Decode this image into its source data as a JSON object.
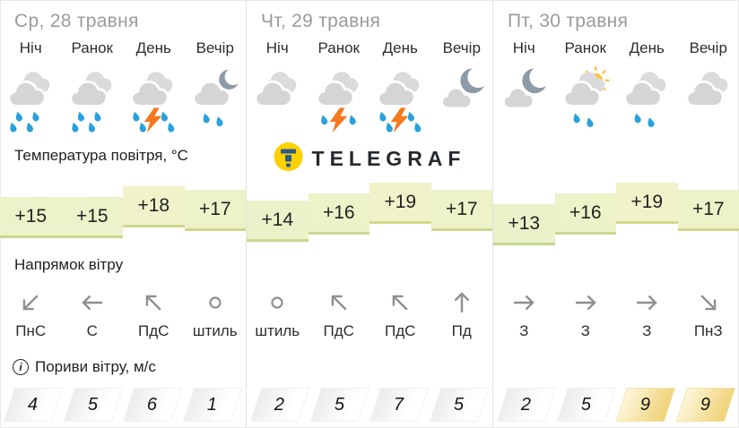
{
  "sections": {
    "temperature": "Температура повітря, °C",
    "wind_direction": "Напрямок вітру",
    "gusts": "Пориви вітру, м/с",
    "gusts_info_symbol": "i"
  },
  "logo": {
    "text": "TELEGRAF"
  },
  "days": [
    {
      "title": "Ср, 28 травня",
      "slots": [
        {
          "time": "Ніч",
          "icon": "cloud-rain4-icon",
          "temp": "+15",
          "temp_value": 15,
          "wind_arrow": "down-left",
          "wind_label": "ПнС",
          "gust": "4",
          "gust_warning": false
        },
        {
          "time": "Ранок",
          "icon": "cloud-rain4-icon",
          "temp": "+15",
          "temp_value": 15,
          "wind_arrow": "left",
          "wind_label": "С",
          "gust": "5",
          "gust_warning": false
        },
        {
          "time": "День",
          "icon": "cloud-storm4-icon",
          "temp": "+18",
          "temp_value": 18,
          "wind_arrow": "up-left",
          "wind_label": "ПдС",
          "gust": "6",
          "gust_warning": false
        },
        {
          "time": "Вечір",
          "icon": "cloud-moon-rain2-icon",
          "temp": "+17",
          "temp_value": 17,
          "wind_arrow": "calm",
          "wind_label": "штиль",
          "gust": "1",
          "gust_warning": false
        }
      ]
    },
    {
      "title": "Чт, 29 травня",
      "slots": [
        {
          "time": "Ніч",
          "icon": "cloudy-icon",
          "temp": "+14",
          "temp_value": 14,
          "wind_arrow": "calm",
          "wind_label": "штиль",
          "gust": "2",
          "gust_warning": false
        },
        {
          "time": "Ранок",
          "icon": "cloud-storm2-icon",
          "temp": "+16",
          "temp_value": 16,
          "wind_arrow": "up-left",
          "wind_label": "ПдС",
          "gust": "5",
          "gust_warning": false
        },
        {
          "time": "День",
          "icon": "cloud-storm4-icon",
          "temp": "+19",
          "temp_value": 19,
          "wind_arrow": "up-left",
          "wind_label": "ПдС",
          "gust": "7",
          "gust_warning": false
        },
        {
          "time": "Вечір",
          "icon": "moon-cloud-icon",
          "temp": "+17",
          "temp_value": 17,
          "wind_arrow": "up",
          "wind_label": "Пд",
          "gust": "5",
          "gust_warning": false
        }
      ]
    },
    {
      "title": "Пт, 30 травня",
      "slots": [
        {
          "time": "Ніч",
          "icon": "moon-cloud-icon",
          "temp": "+13",
          "temp_value": 13,
          "wind_arrow": "right",
          "wind_label": "З",
          "gust": "2",
          "gust_warning": false
        },
        {
          "time": "Ранок",
          "icon": "sun-cloud-rain2-icon",
          "temp": "+16",
          "temp_value": 16,
          "wind_arrow": "right",
          "wind_label": "З",
          "gust": "5",
          "gust_warning": false
        },
        {
          "time": "День",
          "icon": "cloud-rain2-icon",
          "temp": "+19",
          "temp_value": 19,
          "wind_arrow": "right",
          "wind_label": "З",
          "gust": "9",
          "gust_warning": true
        },
        {
          "time": "Вечір",
          "icon": "cloudy-icon",
          "temp": "+17",
          "temp_value": 17,
          "wind_arrow": "down-right",
          "wind_label": "ПнЗ",
          "gust": "9",
          "gust_warning": true
        }
      ]
    }
  ],
  "colors": {
    "temp_cell_green": "#edf4c3",
    "temp_cell_border": "#cbe29b",
    "gust_warn_yellow": "#efd172",
    "rain_drop_blue": "#2aa1dc",
    "lightning_orange": "#f4791f",
    "moon_slate": "#8d9aa8",
    "sun_yellow": "#fdc32f",
    "cloud_gray": "#d5d5d5",
    "logo_yellow": "#ffd101",
    "logo_blue": "#2b5a8c",
    "day_title_gray": "#9b9b9b",
    "arrow_gray": "#8f8f8f"
  }
}
